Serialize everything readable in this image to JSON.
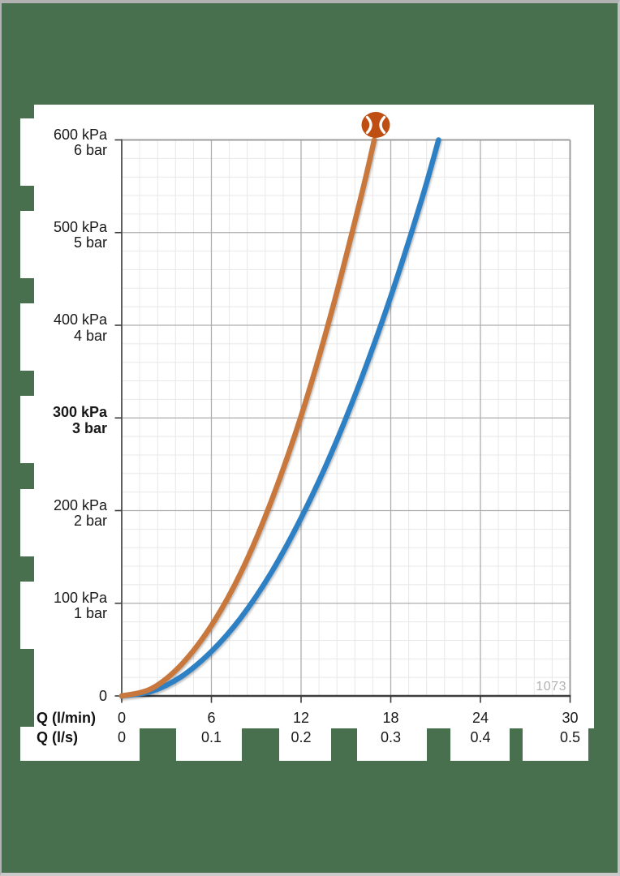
{
  "page": {
    "background_color": "#48704E",
    "paper_color": "#ffffff"
  },
  "logo": {
    "name": "hansgrohe",
    "glyph": ")(",
    "color": "#BF4E13"
  },
  "y_axis": {
    "zero_label": "0",
    "labels": [
      {
        "primary": "600 kPa",
        "secondary": "6 bar",
        "value": 600,
        "bold": false
      },
      {
        "primary": "500 kPa",
        "secondary": "5 bar",
        "value": 500,
        "bold": false
      },
      {
        "primary": "400 kPa",
        "secondary": "4 bar",
        "value": 400,
        "bold": false
      },
      {
        "primary": "300 kPa",
        "secondary": "3 bar",
        "value": 300,
        "bold": true
      },
      {
        "primary": "200 kPa",
        "secondary": "2 bar",
        "value": 200,
        "bold": false
      },
      {
        "primary": "100 kPa",
        "secondary": "1 bar",
        "value": 100,
        "bold": false
      }
    ]
  },
  "x_axis": {
    "title_lmin": "Q (l/min)",
    "title_ls": "Q (l/s)",
    "lmin_ticks": [
      {
        "label": "0",
        "value": 0
      },
      {
        "label": "6",
        "value": 6
      },
      {
        "label": "12",
        "value": 12
      },
      {
        "label": "18",
        "value": 18
      },
      {
        "label": "24",
        "value": 24
      },
      {
        "label": "30",
        "value": 30
      }
    ],
    "ls_ticks": [
      {
        "label": "0",
        "value": 0
      },
      {
        "label": "0.1",
        "value": 6
      },
      {
        "label": "0.2",
        "value": 12
      },
      {
        "label": "0.3",
        "value": 18
      },
      {
        "label": "0.4",
        "value": 24
      },
      {
        "label": "0.5",
        "value": 30
      }
    ]
  },
  "chart_data": {
    "type": "line",
    "title": "Flow rate vs. pressure drop diagram",
    "xlabel": "Q (l/min)",
    "xlabel_secondary": "Q (l/s)",
    "ylabel": "kPa / bar",
    "xlim": [
      0,
      30
    ],
    "ylim": [
      0,
      600
    ],
    "x_major_step": 6,
    "x_minor_step": 1.2,
    "y_major_step": 100,
    "y_minor_step": 20,
    "grid": true,
    "legend": "none",
    "annotation": "1073",
    "series": [
      {
        "name": "curve-blue",
        "color": "#2E80C4",
        "points_q_lmin_vs_kpa": [
          [
            0,
            0
          ],
          [
            2,
            5
          ],
          [
            4,
            21
          ],
          [
            6,
            48
          ],
          [
            8,
            85
          ],
          [
            10,
            133
          ],
          [
            12,
            192
          ],
          [
            14,
            261
          ],
          [
            16,
            341
          ],
          [
            18,
            431
          ],
          [
            20,
            532
          ],
          [
            21.2,
            600
          ]
        ]
      },
      {
        "name": "curve-orange",
        "color": "#C8773C",
        "points_q_lmin_vs_kpa": [
          [
            0,
            0
          ],
          [
            2,
            8
          ],
          [
            4,
            34
          ],
          [
            6,
            76
          ],
          [
            8,
            134
          ],
          [
            10,
            210
          ],
          [
            12,
            302
          ],
          [
            14,
            412
          ],
          [
            16,
            538
          ],
          [
            16.9,
            600
          ]
        ]
      }
    ]
  }
}
